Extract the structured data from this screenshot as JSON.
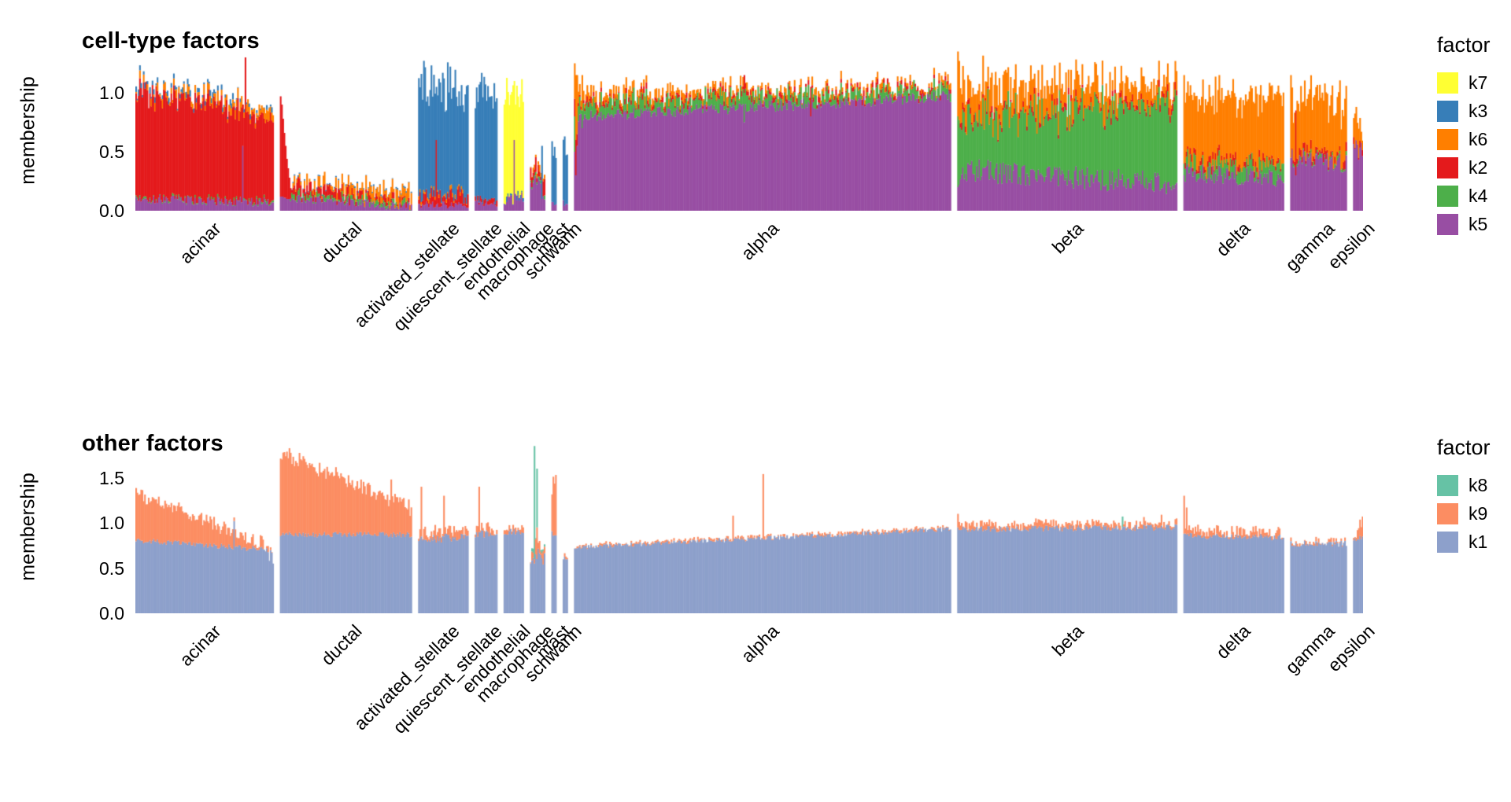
{
  "page": {
    "background": "#ffffff"
  },
  "chart_data": [
    {
      "type": "bar",
      "subtype": "stacked-structure-plot",
      "title": "cell-type factors",
      "ylabel": "membership",
      "xlabel": "",
      "ylim": [
        0,
        1.36
      ],
      "grid": false,
      "legend_position": "right",
      "legend": {
        "title": "factor",
        "entries": [
          {
            "label": "k7",
            "color": "#FFFF33"
          },
          {
            "label": "k3",
            "color": "#377EB8"
          },
          {
            "label": "k6",
            "color": "#FF7F00"
          },
          {
            "label": "k2",
            "color": "#E41A1C"
          },
          {
            "label": "k4",
            "color": "#4DAF4A"
          },
          {
            "label": "k5",
            "color": "#984EA3"
          }
        ]
      },
      "colors": {
        "k7": "#FFFF33",
        "k3": "#377EB8",
        "k6": "#FF7F00",
        "k2": "#E41A1C",
        "k4": "#4DAF4A",
        "k5": "#984EA3"
      },
      "stack_order": [
        "k5",
        "k4",
        "k2",
        "k6",
        "k3",
        "k7"
      ],
      "yticks": [
        {
          "label": "0.0",
          "value": 0.0
        },
        {
          "label": "0.5",
          "value": 0.5
        },
        {
          "label": "1.0",
          "value": 1.0
        }
      ],
      "groups": [
        {
          "label": "acinar",
          "n": 110,
          "stacks": {
            "k5": [
              0.1,
              0.07,
              0.04
            ],
            "k4": [
              0.01,
              0.01,
              0.015
            ],
            "k2": [
              0.9,
              0.72,
              0.1
            ],
            "k6": [
              0.02,
              0.07,
              0.05
            ],
            "k3": [
              0.02,
              0.02,
              0.035
            ]
          },
          "spikes": [
            {
              "at": 0.78,
              "stacks": {
                "k5": 0.55,
                "k2": 0.35
              }
            },
            {
              "at": 0.8,
              "stacks": {
                "k5": 0.1,
                "k2": 1.2
              }
            }
          ]
        },
        {
          "label": "ductal",
          "n": 105,
          "stacks": {
            "k5": [
              0.12,
              0.03,
              0.04
            ],
            "k4": [
              0.03,
              0.02,
              0.03
            ],
            "k2": [
              0.08,
              0.01,
              0.05
            ],
            "k6": [
              0.03,
              0.08,
              0.06
            ],
            "k3": [
              0.005,
              0.005,
              0.01
            ]
          },
          "spikes": [
            {
              "at": 0.0,
              "stacks": {
                "k5": 0.12,
                "k2": 0.85
              }
            },
            {
              "at": 0.01,
              "stacks": {
                "k5": 0.12,
                "k2": 0.78
              }
            },
            {
              "at": 0.02,
              "stacks": {
                "k5": 0.12,
                "k2": 0.66
              }
            },
            {
              "at": 0.03,
              "stacks": {
                "k5": 0.11,
                "k2": 0.55
              }
            },
            {
              "at": 0.04,
              "stacks": {
                "k5": 0.11,
                "k2": 0.44
              }
            },
            {
              "at": 0.05,
              "stacks": {
                "k5": 0.1,
                "k2": 0.34
              }
            },
            {
              "at": 0.06,
              "stacks": {
                "k5": 0.1,
                "k2": 0.26
              }
            },
            {
              "at": 0.07,
              "stacks": {
                "k5": 0.1,
                "k2": 0.18
              }
            }
          ]
        },
        {
          "label": "activated_stellate",
          "n": 40,
          "stacks": {
            "k5": [
              0.05,
              0.05,
              0.03
            ],
            "k2": [
              0.08,
              0.08,
              0.07
            ],
            "k3": [
              0.9,
              0.9,
              0.22
            ],
            "k6": [
              0.02,
              0.02,
              0.02
            ]
          },
          "spikes": [
            {
              "at": 0.35,
              "stacks": {
                "k5": 0.05,
                "k2": 0.55,
                "k3": 0.45
              }
            }
          ]
        },
        {
          "label": "quiescent_stellate",
          "n": 18,
          "stacks": {
            "k5": [
              0.06,
              0.06,
              0.03
            ],
            "k3": [
              0.92,
              0.92,
              0.18
            ],
            "k2": [
              0.03,
              0.03,
              0.03
            ]
          }
        },
        {
          "label": "endothelial",
          "n": 16,
          "stacks": {
            "k5": [
              0.1,
              0.1,
              0.06
            ],
            "k7": [
              0.88,
              0.88,
              0.14
            ],
            "k3": [
              0.02,
              0.02,
              0.03
            ]
          },
          "spikes": [
            {
              "at": 0.5,
              "stacks": {
                "k5": 0.6,
                "k7": 0.5
              }
            }
          ]
        },
        {
          "label": "macrophage",
          "n": 12,
          "stacks": {
            "k5": [
              0.2,
              0.2,
              0.12
            ],
            "k2": [
              0.08,
              0.08,
              0.06
            ],
            "k6": [
              0.03,
              0.03,
              0.03
            ],
            "k4": [
              0.02,
              0.02,
              0.02
            ]
          },
          "spikes": [
            {
              "at": 0.8,
              "stacks": {
                "k5": 0.1,
                "k3": 0.45
              }
            }
          ]
        },
        {
          "label": "mast",
          "n": 4,
          "stacks": {
            "k5": [
              0.05,
              0.05,
              0.03
            ],
            "k3": [
              0.45,
              0.45,
              0.12
            ]
          }
        },
        {
          "label": "schwann",
          "n": 4,
          "stacks": {
            "k5": [
              0.06,
              0.06,
              0.03
            ],
            "k3": [
              0.5,
              0.5,
              0.1
            ]
          }
        },
        {
          "label": "alpha",
          "n": 300,
          "stacks": {
            "k5": [
              0.8,
              0.97,
              0.05
            ],
            "k4": [
              0.1,
              0.05,
              0.08
            ],
            "k6": [
              0.06,
              0.02,
              0.04
            ],
            "k2": [
              0.03,
              0.02,
              0.03
            ]
          },
          "spikes": [
            {
              "at": 0.0,
              "stacks": {
                "k5": 0.5,
                "k4": 0.3,
                "k6": 0.3,
                "k2": 0.15
              }
            },
            {
              "at": 0.004,
              "stacks": {
                "k5": 0.3,
                "k2": 0.3,
                "k6": 0.55
              }
            },
            {
              "at": 0.008,
              "stacks": {
                "k5": 0.55,
                "k6": 0.5,
                "k2": 0.1
              }
            },
            {
              "at": 0.02,
              "stacks": {
                "k5": 0.7,
                "k4": 0.15,
                "k6": 0.3
              }
            },
            {
              "at": 0.45,
              "stacks": {
                "k5": 0.75,
                "k4": 0.25,
                "k2": 0.15
              }
            },
            {
              "at": 0.63,
              "stacks": {
                "k5": 0.8,
                "k2": 0.25
              }
            }
          ]
        },
        {
          "label": "beta",
          "n": 175,
          "stacks": {
            "k5": [
              0.35,
              0.22,
              0.1
            ],
            "k4": [
              0.42,
              0.68,
              0.15
            ],
            "k6": [
              0.25,
              0.12,
              0.1
            ],
            "k2": [
              0.03,
              0.03,
              0.04
            ]
          },
          "spikes": [
            {
              "at": 0.0,
              "stacks": {
                "k5": 0.2,
                "k4": 0.6,
                "k6": 0.55
              }
            },
            {
              "at": 0.006,
              "stacks": {
                "k5": 0.22,
                "k4": 0.55,
                "k6": 0.5
              }
            }
          ]
        },
        {
          "label": "delta",
          "n": 80,
          "stacks": {
            "k5": [
              0.32,
              0.28,
              0.08
            ],
            "k4": [
              0.1,
              0.1,
              0.07
            ],
            "k6": [
              0.55,
              0.55,
              0.1
            ],
            "k2": [
              0.03,
              0.03,
              0.04
            ]
          },
          "spikes": [
            {
              "at": 0.0,
              "stacks": {
                "k5": 0.3,
                "k4": 0.1,
                "k6": 0.75
              }
            }
          ]
        },
        {
          "label": "gamma",
          "n": 45,
          "stacks": {
            "k5": [
              0.45,
              0.4,
              0.08
            ],
            "k6": [
              0.42,
              0.45,
              0.12
            ],
            "k2": [
              0.04,
              0.04,
              0.04
            ],
            "k4": [
              0.02,
              0.02,
              0.02
            ]
          },
          "spikes": [
            {
              "at": 0.0,
              "stacks": {
                "k5": 0.45,
                "k6": 0.7
              }
            },
            {
              "at": 0.1,
              "stacks": {
                "k5": 0.3,
                "k2": 0.55
              }
            }
          ]
        },
        {
          "label": "epsilon",
          "n": 8,
          "stacks": {
            "k5": [
              0.5,
              0.5,
              0.1
            ],
            "k6": [
              0.2,
              0.2,
              0.12
            ],
            "k2": [
              0.03,
              0.03,
              0.03
            ]
          }
        }
      ]
    },
    {
      "type": "bar",
      "subtype": "stacked-structure-plot",
      "title": "other factors",
      "ylabel": "membership",
      "xlabel": "",
      "ylim": [
        0,
        1.91
      ],
      "grid": false,
      "legend_position": "right",
      "legend": {
        "title": "factor",
        "entries": [
          {
            "label": "k8",
            "color": "#66C2A5"
          },
          {
            "label": "k9",
            "color": "#FC8D62"
          },
          {
            "label": "k1",
            "color": "#8DA0CB"
          }
        ]
      },
      "colors": {
        "k8": "#66C2A5",
        "k9": "#FC8D62",
        "k1": "#8DA0CB"
      },
      "stack_order": [
        "k1",
        "k9",
        "k8"
      ],
      "yticks": [
        {
          "label": "0.0",
          "value": 0.0
        },
        {
          "label": "0.5",
          "value": 0.5
        },
        {
          "label": "1.0",
          "value": 1.0
        },
        {
          "label": "1.5",
          "value": 1.5
        }
      ],
      "groups": [
        {
          "label": "acinar",
          "n": 110,
          "stacks": {
            "k1": [
              0.81,
              0.7,
              0.03
            ],
            "k9": [
              0.52,
              0.02,
              0.07
            ]
          },
          "spikes": [
            {
              "at": 0.72,
              "stacks": {
                "k1": 1.02,
                "k9": 0.04
              }
            },
            {
              "at": 0.97,
              "stacks": {
                "k1": 0.58
              }
            },
            {
              "at": 1.0,
              "stacks": {
                "k1": 0.55
              }
            }
          ]
        },
        {
          "label": "ductal",
          "n": 105,
          "stacks": {
            "k1": [
              0.87,
              0.87,
              0.03
            ],
            "k9": [
              0.9,
              0.3,
              0.07
            ]
          },
          "spikes": [
            {
              "at": 0.85,
              "stacks": {
                "k1": 0.88,
                "k9": 0.6
              }
            }
          ]
        },
        {
          "label": "activated_stellate",
          "n": 40,
          "stacks": {
            "k1": [
              0.83,
              0.83,
              0.05
            ],
            "k9": [
              0.08,
              0.08,
              0.08
            ]
          },
          "spikes": [
            {
              "at": 0.05,
              "stacks": {
                "k1": 0.85,
                "k9": 0.55
              }
            },
            {
              "at": 0.5,
              "stacks": {
                "k1": 0.85,
                "k9": 0.45
              }
            }
          ]
        },
        {
          "label": "quiescent_stellate",
          "n": 18,
          "stacks": {
            "k1": [
              0.88,
              0.88,
              0.04
            ],
            "k9": [
              0.06,
              0.06,
              0.06
            ]
          },
          "spikes": [
            {
              "at": 0.2,
              "stacks": {
                "k1": 0.9,
                "k9": 0.5
              }
            }
          ]
        },
        {
          "label": "endothelial",
          "n": 16,
          "stacks": {
            "k1": [
              0.9,
              0.9,
              0.04
            ],
            "k9": [
              0.04,
              0.04,
              0.04
            ]
          }
        },
        {
          "label": "macrophage",
          "n": 12,
          "stacks": {
            "k1": [
              0.6,
              0.6,
              0.12
            ],
            "k9": [
              0.1,
              0.1,
              0.1
            ],
            "k8": [
              0.02,
              0.02,
              0.03
            ]
          },
          "spikes": [
            {
              "at": 0.3,
              "stacks": {
                "k1": 0.55,
                "k9": 0.05,
                "k8": 1.25
              }
            },
            {
              "at": 0.45,
              "stacks": {
                "k1": 0.6,
                "k9": 0.35,
                "k8": 0.65
              }
            }
          ]
        },
        {
          "label": "mast",
          "n": 4,
          "stacks": {
            "k1": [
              0.88,
              0.88,
              0.04
            ],
            "k9": [
              0.55,
              0.55,
              0.15
            ]
          }
        },
        {
          "label": "schwann",
          "n": 4,
          "stacks": {
            "k1": [
              0.6,
              0.6,
              0.05
            ],
            "k9": [
              0.03,
              0.03,
              0.03
            ]
          }
        },
        {
          "label": "alpha",
          "n": 300,
          "stacks": {
            "k1": [
              0.73,
              0.93,
              0.025
            ],
            "k9": [
              0.015,
              0.015,
              0.02
            ]
          },
          "spikes": [
            {
              "at": 0.42,
              "stacks": {
                "k1": 0.8,
                "k9": 0.28
              }
            },
            {
              "at": 0.5,
              "stacks": {
                "k1": 0.82,
                "k9": 0.72
              }
            }
          ]
        },
        {
          "label": "beta",
          "n": 175,
          "stacks": {
            "k1": [
              0.93,
              0.95,
              0.035
            ],
            "k9": [
              0.04,
              0.04,
              0.05
            ]
          },
          "spikes": [
            {
              "at": 0.0,
              "stacks": {
                "k1": 0.95,
                "k9": 0.15
              }
            },
            {
              "at": 0.75,
              "stacks": {
                "k1": 0.95,
                "k8": 0.12
              }
            },
            {
              "at": 0.93,
              "stacks": {
                "k1": 0.97,
                "k9": 0.12
              }
            }
          ]
        },
        {
          "label": "delta",
          "n": 80,
          "stacks": {
            "k1": [
              0.86,
              0.84,
              0.035
            ],
            "k9": [
              0.07,
              0.04,
              0.06
            ]
          },
          "spikes": [
            {
              "at": 0.0,
              "stacks": {
                "k1": 0.88,
                "k9": 0.42
              }
            },
            {
              "at": 0.02,
              "stacks": {
                "k1": 0.87,
                "k9": 0.3
              }
            }
          ]
        },
        {
          "label": "gamma",
          "n": 45,
          "stacks": {
            "k1": [
              0.77,
              0.77,
              0.035
            ],
            "k9": [
              0.02,
              0.02,
              0.03
            ]
          }
        },
        {
          "label": "epsilon",
          "n": 8,
          "stacks": {
            "k1": [
              0.82,
              0.82,
              0.05
            ],
            "k9": [
              0.1,
              0.1,
              0.1
            ]
          },
          "spikes": [
            {
              "at": 1.0,
              "stacks": {
                "k1": 0.85,
                "k9": 0.22
              }
            }
          ]
        }
      ]
    }
  ]
}
